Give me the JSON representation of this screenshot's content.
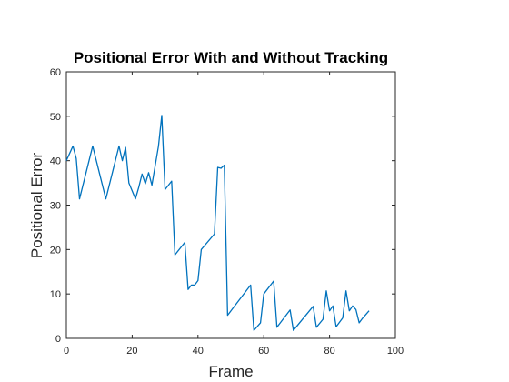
{
  "chart_data": {
    "type": "line",
    "title": "Positional Error With and Without Tracking",
    "xlabel": "Frame",
    "ylabel": "Positional Error",
    "xlim": [
      0,
      100
    ],
    "ylim": [
      0,
      60
    ],
    "xticks": [
      0,
      20,
      40,
      60,
      80,
      100
    ],
    "yticks": [
      0,
      10,
      20,
      30,
      40,
      50,
      60
    ],
    "grid": false,
    "line_color": "#0072BD",
    "series": [
      {
        "x": [
          0,
          2,
          3,
          4,
          8,
          12,
          16,
          17,
          18,
          19,
          21,
          22,
          23,
          24,
          25,
          26,
          28,
          29,
          30,
          32,
          33,
          36,
          37,
          38,
          39,
          40,
          41,
          45,
          46,
          47,
          48,
          49,
          56,
          57,
          59,
          60,
          63,
          64,
          68,
          69,
          75,
          76,
          78,
          79,
          80,
          81,
          82,
          84,
          85,
          86,
          87,
          88,
          89,
          90,
          92
        ],
        "y": [
          40,
          43.3,
          40.5,
          31.4,
          43.3,
          31.4,
          43.3,
          40,
          43,
          35,
          31.4,
          34,
          37,
          34.8,
          37.3,
          34.5,
          43.3,
          50.2,
          33.5,
          35.4,
          18.8,
          21.6,
          11,
          12,
          12,
          13,
          20,
          23.5,
          38.5,
          38.3,
          39,
          5.2,
          12,
          1.8,
          3.5,
          10,
          12.9,
          2.5,
          6.4,
          1.8,
          7.2,
          2.5,
          4.3,
          10.7,
          6.2,
          7.3,
          2.6,
          4.6,
          10.7,
          6.2,
          7.3,
          6.5,
          3.5,
          4.5,
          6.2
        ]
      }
    ]
  }
}
